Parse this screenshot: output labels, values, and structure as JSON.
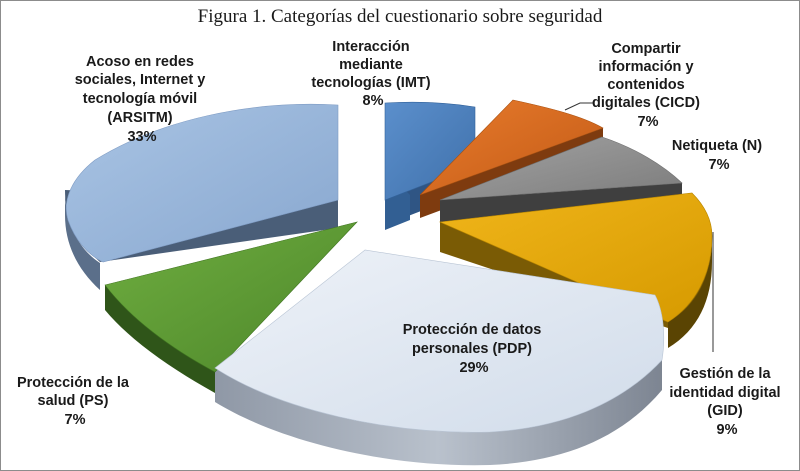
{
  "chart_data": {
    "type": "pie",
    "title": "Figura 1. Categorías del cuestionario sobre seguridad",
    "style": "3d-exploded",
    "slices": [
      {
        "category": "Interacción mediante tecnologías (IMT)",
        "label_lines": [
          "Interacción",
          "mediante",
          "tecnologías (IMT)"
        ],
        "value": 8,
        "percent_label": "8%",
        "color": "#4A7EBB"
      },
      {
        "category": "Compartir información y contenidos digitales (CICD)",
        "label_lines": [
          "Compartir",
          "información y",
          "contenidos",
          "digitales (CICD)"
        ],
        "value": 7,
        "percent_label": "7%",
        "color": "#D9691E"
      },
      {
        "category": "Netiqueta (N)",
        "label_lines": [
          "Netiqueta (N)"
        ],
        "value": 7,
        "percent_label": "7%",
        "color": "#8F8F8F"
      },
      {
        "category": "Gestión de la identidad digital (GID)",
        "label_lines": [
          "Gestión de la",
          "identidad digital",
          "(GID)"
        ],
        "value": 9,
        "percent_label": "9%",
        "color": "#E2A400"
      },
      {
        "category": "Protección de datos personales (PDP)",
        "label_lines": [
          "Protección de datos",
          "personales (PDP)"
        ],
        "value": 29,
        "percent_label": "29%",
        "color": "#DCE6F2"
      },
      {
        "category": "Protección de la salud (PS)",
        "label_lines": [
          "Protección de la",
          "salud (PS)"
        ],
        "value": 7,
        "percent_label": "7%",
        "color": "#5E9B34"
      },
      {
        "category": "Acoso en redes sociales, Internet y tecnología móvil (ARSITM)",
        "label_lines": [
          "Acoso en redes",
          "sociales, Internet y",
          "tecnología móvil",
          "(ARSITM)"
        ],
        "value": 33,
        "percent_label": "33%",
        "color": "#95B3D7"
      }
    ]
  }
}
